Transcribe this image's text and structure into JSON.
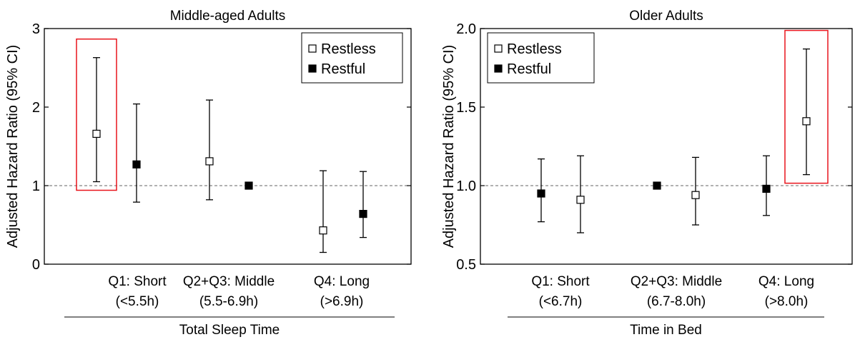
{
  "chart_data": [
    {
      "type": "scatter",
      "subtype": "errorbar",
      "title": "Middle-aged Adults",
      "ylabel": "Adjusted Hazard Ratio (95% CI)",
      "xlabel": "Total Sleep Time",
      "ylim": [
        0,
        3
      ],
      "yticks": [
        "0",
        "1",
        "2",
        "3"
      ],
      "reference_line": 1,
      "grid": false,
      "legend_position": "top-right",
      "categories": [
        {
          "line1": "Q1: Short",
          "line2": "(<5.5h)"
        },
        {
          "line1": "Q2+Q3: Middle",
          "line2": "(5.5-6.9h)"
        },
        {
          "line1": "Q4: Long",
          "line2": "(>6.9h)"
        }
      ],
      "series": [
        {
          "name": "Restless",
          "marker": "open-square",
          "values": [
            1.66,
            1.31,
            0.43
          ],
          "lower": [
            1.05,
            0.82,
            0.15
          ],
          "upper": [
            2.63,
            2.09,
            1.19
          ]
        },
        {
          "name": "Restful",
          "marker": "filled-square",
          "values": [
            1.27,
            1.0,
            0.64
          ],
          "lower": [
            0.79,
            null,
            0.34
          ],
          "upper": [
            2.04,
            null,
            1.18
          ]
        }
      ],
      "highlight": {
        "category": 0,
        "series": "Restless",
        "color": "#e8141c"
      }
    },
    {
      "type": "scatter",
      "subtype": "errorbar",
      "title": "Older Adults",
      "ylabel": "Adjusted Hazard Ratio (95% CI)",
      "xlabel": "Time in Bed",
      "ylim": [
        0.5,
        2.0
      ],
      "yticks": [
        "0.5",
        "1.0",
        "1.5",
        "2.0"
      ],
      "reference_line": 1,
      "grid": false,
      "legend_position": "top-left",
      "categories": [
        {
          "line1": "Q1: Short",
          "line2": "(<6.7h)"
        },
        {
          "line1": "Q2+Q3: Middle",
          "line2": "(6.7-8.0h)"
        },
        {
          "line1": "Q4: Long",
          "line2": "(>8.0h)"
        }
      ],
      "series": [
        {
          "name": "Restless",
          "marker": "open-square",
          "values": [
            0.91,
            0.94,
            1.41
          ],
          "lower": [
            0.7,
            0.75,
            1.07
          ],
          "upper": [
            1.19,
            1.18,
            1.87
          ]
        },
        {
          "name": "Restful",
          "marker": "filled-square",
          "values": [
            0.95,
            1.0,
            0.98
          ],
          "lower": [
            0.77,
            null,
            0.81
          ],
          "upper": [
            1.17,
            null,
            1.19
          ]
        }
      ],
      "highlight": {
        "category": 2,
        "series": "Restless",
        "color": "#e8141c"
      }
    }
  ]
}
